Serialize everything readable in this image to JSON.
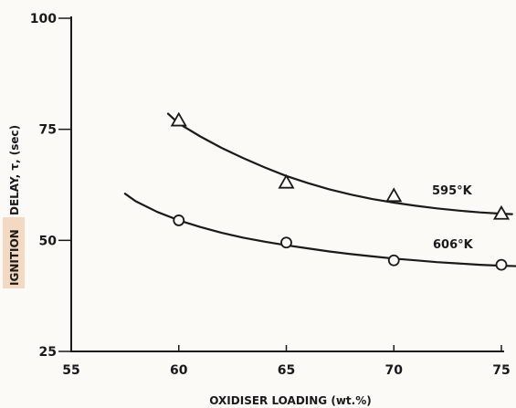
{
  "chart_data": {
    "type": "scatter",
    "xlabel": "OXIDISER LOADING (wt.%)",
    "ylabel_prefix": "IGNITION",
    "ylabel": "DELAY, τ, (sec)",
    "xlim": [
      55,
      75
    ],
    "ylim": [
      25,
      100
    ],
    "x_ticks": [
      "55",
      "60",
      "65",
      "70",
      "75"
    ],
    "y_ticks": [
      "100",
      "75",
      "50",
      "25"
    ],
    "grid": false,
    "series": [
      {
        "name": "595°K",
        "marker": "triangle",
        "x": [
          60,
          65,
          70,
          75
        ],
        "y": [
          77,
          63,
          60,
          56
        ],
        "curve_x": [
          59.5,
          60,
          61,
          62,
          63,
          64,
          65,
          66,
          67,
          68,
          69,
          70,
          71,
          72,
          73,
          74,
          75,
          75.5
        ],
        "curve_y": [
          78.5,
          76.3,
          73.4,
          70.8,
          68.5,
          66.4,
          64.5,
          62.9,
          61.5,
          60.3,
          59.3,
          58.5,
          57.8,
          57.2,
          56.7,
          56.3,
          56.0,
          55.9
        ]
      },
      {
        "name": "606°K",
        "marker": "circle",
        "x": [
          60,
          65,
          70,
          75
        ],
        "y": [
          54.5,
          49.5,
          45.5,
          44.5
        ],
        "curve_x": [
          57.5,
          58,
          59,
          60,
          61,
          62,
          63,
          64,
          65,
          66,
          67,
          68,
          69,
          70,
          71,
          72,
          73,
          74,
          75,
          75.7
        ],
        "curve_y": [
          60.5,
          58.8,
          56.4,
          54.5,
          53.0,
          51.7,
          50.6,
          49.7,
          48.9,
          48.2,
          47.5,
          46.9,
          46.4,
          45.9,
          45.5,
          45.1,
          44.8,
          44.5,
          44.3,
          44.2
        ]
      }
    ]
  }
}
